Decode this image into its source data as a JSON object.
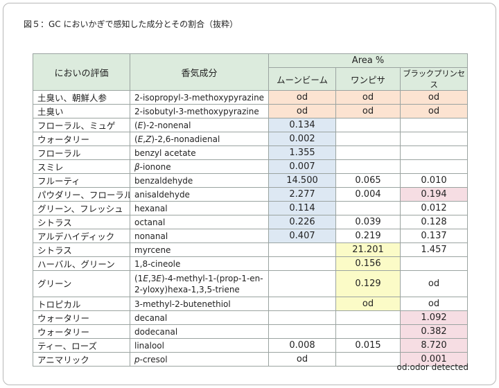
{
  "title": "図５：GC においかぎで感知した成分とその割合（抜粋）",
  "headers": {
    "eval": "においの評価",
    "component": "香気成分",
    "area": "Area %",
    "samples": [
      "ムーンビーム",
      "ワンピサ",
      "ブラックプリンセス"
    ]
  },
  "rows": [
    {
      "eval": "土臭い、朝鮮人参",
      "name_html": "2-isopropyl-3-methoxypyrazine",
      "v": [
        "od",
        "od",
        "od"
      ],
      "bg": [
        "orange",
        "orange",
        "orange"
      ]
    },
    {
      "eval": "土臭い",
      "name_html": "2-isobutyl-3-methoxypyrazine",
      "v": [
        "od",
        "od",
        "od"
      ],
      "bg": [
        "orange",
        "orange",
        "orange"
      ]
    },
    {
      "eval": "フローラル、ミュゲ",
      "name_html": "(<i>E</i>)-2-nonenal",
      "v": [
        "0.134",
        "",
        ""
      ],
      "bg": [
        "blue",
        "",
        ""
      ]
    },
    {
      "eval": "ウォータリー",
      "name_html": "(<i>E</i>,<i>Z</i>)-2,6-nonadienal",
      "v": [
        "0.002",
        "",
        ""
      ],
      "bg": [
        "blue",
        "",
        ""
      ]
    },
    {
      "eval": "フローラル",
      "name_html": "benzyl acetate",
      "v": [
        "1.355",
        "",
        ""
      ],
      "bg": [
        "blue",
        "",
        ""
      ]
    },
    {
      "eval": "スミレ",
      "name_html": "<i>β</i>-ionone",
      "v": [
        "0.007",
        "",
        ""
      ],
      "bg": [
        "blue",
        "",
        ""
      ]
    },
    {
      "eval": "フルーティ",
      "name_html": "benzaldehyde",
      "v": [
        "14.500",
        "0.065",
        "0.010"
      ],
      "bg": [
        "blue",
        "",
        ""
      ]
    },
    {
      "eval": "パウダリー、フローラル",
      "name_html": "anisaldehyde",
      "v": [
        "2.277",
        "0.004",
        "0.194"
      ],
      "bg": [
        "blue",
        "",
        "pink"
      ]
    },
    {
      "eval": "グリーン、フレッシュ",
      "name_html": "hexanal",
      "v": [
        "0.114",
        "",
        "0.012"
      ],
      "bg": [
        "blue",
        "",
        ""
      ]
    },
    {
      "eval": "シトラス",
      "name_html": "octanal",
      "v": [
        "0.226",
        "0.039",
        "0.128"
      ],
      "bg": [
        "blue",
        "",
        ""
      ]
    },
    {
      "eval": "アルデハイディック",
      "name_html": "nonanal",
      "v": [
        "0.407",
        "0.219",
        "0.137"
      ],
      "bg": [
        "blue",
        "",
        ""
      ]
    },
    {
      "eval": "シトラス",
      "name_html": "myrcene",
      "v": [
        "",
        "21.201",
        "1.457"
      ],
      "bg": [
        "",
        "yellow",
        ""
      ]
    },
    {
      "eval": "ハーバル、グリーン",
      "name_html": "1,8-cineole",
      "v": [
        "",
        "0.156",
        ""
      ],
      "bg": [
        "",
        "yellow",
        ""
      ]
    },
    {
      "eval": "グリーン",
      "name_html": "(1<i>E</i>,3<i>E</i>)-4-methyl-1-(prop-1-en-2-yloxy)hexa-1,3,5-triene",
      "v": [
        "",
        "0.129",
        "od"
      ],
      "bg": [
        "",
        "yellow",
        ""
      ],
      "tall": true
    },
    {
      "eval": "トロピカル",
      "name_html": "3-methyl-2-butenethiol",
      "v": [
        "",
        "od",
        "od"
      ],
      "bg": [
        "",
        "yellow",
        ""
      ]
    },
    {
      "eval": "ウォータリー",
      "name_html": "decanal",
      "v": [
        "",
        "",
        "1.092"
      ],
      "bg": [
        "",
        "",
        "pink"
      ]
    },
    {
      "eval": "ウォータリー",
      "name_html": "dodecanal",
      "v": [
        "",
        "",
        "0.382"
      ],
      "bg": [
        "",
        "",
        "pink"
      ]
    },
    {
      "eval": "ティー、ローズ",
      "name_html": "linalool",
      "v": [
        "0.008",
        "0.015",
        "8.720"
      ],
      "bg": [
        "",
        "",
        "pink"
      ]
    },
    {
      "eval": "アニマリック",
      "name_html": "<i>p</i>-cresol",
      "v": [
        "od",
        "",
        "0.001"
      ],
      "bg": [
        "",
        "",
        "pink"
      ]
    }
  ],
  "note": "od:odor detected",
  "colors": {
    "header": "#dcebdd",
    "orange": "#fce3d1",
    "blue": "#dde8f3",
    "yellow": "#fbfbc7",
    "pink": "#f6dde3"
  }
}
